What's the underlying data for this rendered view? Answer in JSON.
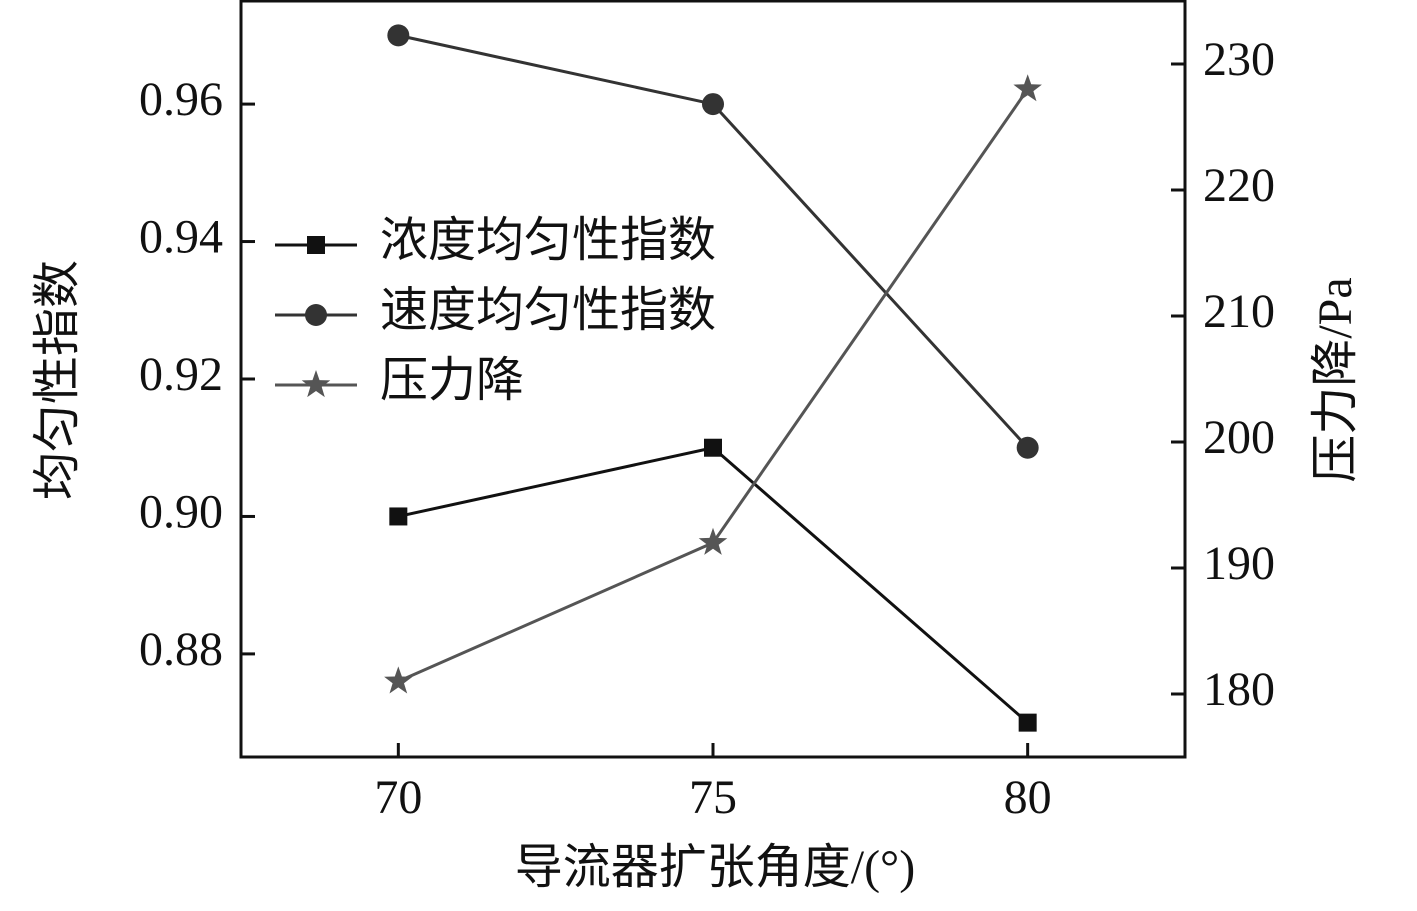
{
  "chart_data": {
    "type": "line",
    "x": [
      70,
      75,
      80
    ],
    "xlabel": "导流器扩张角度/(°)",
    "ylabel": "均匀性指数",
    "y2label": "压力降/Pa",
    "xlim": [
      67.5,
      82.5
    ],
    "xticks": [
      70,
      75,
      80
    ],
    "ylim": [
      0.865,
      0.975
    ],
    "yticks": [
      0.88,
      {
        "value": 0.9,
        "label": "0.90"
      },
      0.92,
      0.94,
      0.96
    ],
    "y2lim": [
      175,
      235
    ],
    "y2ticks": [
      180,
      190,
      200,
      210,
      220,
      230
    ],
    "legend": "upper left",
    "series": [
      {
        "name": "浓度均匀性指数",
        "color": "#111111",
        "marker": "square",
        "values": [
          0.9,
          0.91,
          0.87
        ]
      },
      {
        "name": "速度均匀性指数",
        "color": "#333333",
        "marker": "circle",
        "values": [
          0.97,
          0.96,
          0.91
        ]
      },
      {
        "name": "压力降",
        "color": "#555555",
        "marker": "star",
        "axis": "y2",
        "values": [
          181,
          192,
          228
        ]
      }
    ]
  }
}
